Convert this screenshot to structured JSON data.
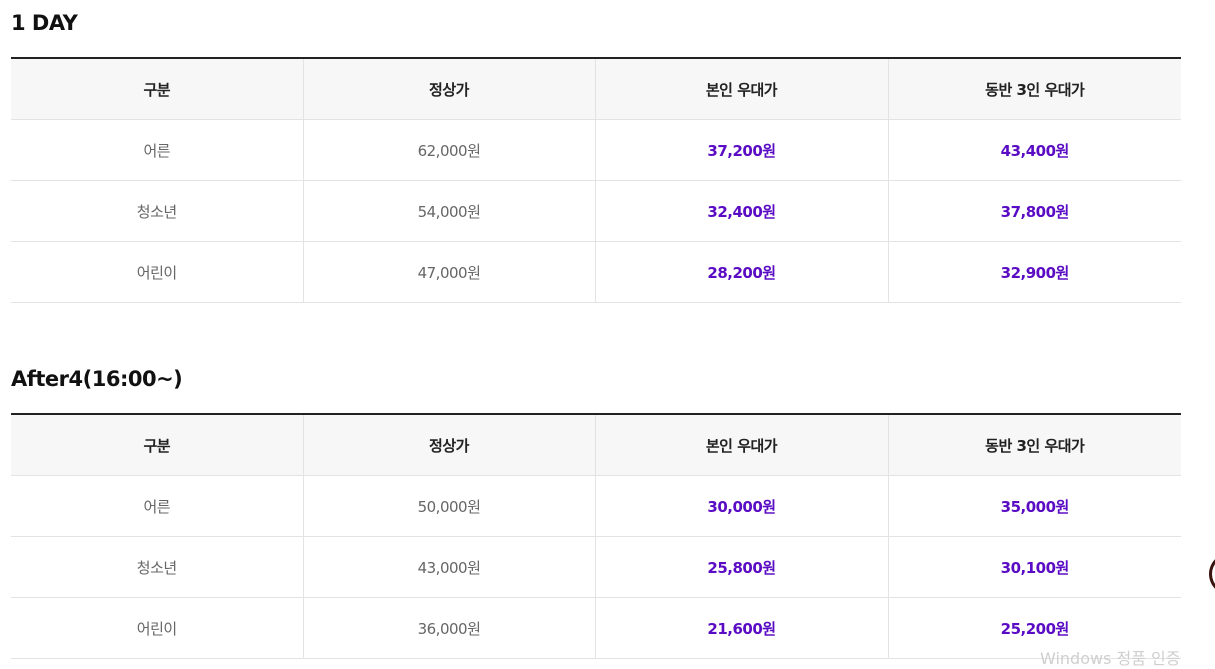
{
  "sections": [
    {
      "title": "1 DAY",
      "headers": [
        "구분",
        "정상가",
        "본인 우대가",
        "동반 3인 우대가"
      ],
      "rows": [
        {
          "category": "어른",
          "regular": "62,000원",
          "self": "37,200원",
          "companion": "43,400원"
        },
        {
          "category": "청소년",
          "regular": "54,000원",
          "self": "32,400원",
          "companion": "37,800원"
        },
        {
          "category": "어린이",
          "regular": "47,000원",
          "self": "28,200원",
          "companion": "32,900원"
        }
      ]
    },
    {
      "title": "After4(16:00~)",
      "headers": [
        "구분",
        "정상가",
        "본인 우대가",
        "동반 3인 우대가"
      ],
      "rows": [
        {
          "category": "어른",
          "regular": "50,000원",
          "self": "30,000원",
          "companion": "35,000원"
        },
        {
          "category": "청소년",
          "regular": "43,000원",
          "self": "25,800원",
          "companion": "30,100원"
        },
        {
          "category": "어린이",
          "regular": "36,000원",
          "self": "21,600원",
          "companion": "25,200원"
        }
      ]
    }
  ],
  "overlay_text": "Windows 정품 인증",
  "colors": {
    "discount": "#5a0cc4",
    "header_bg": "#f7f7f7",
    "border_top": "#222222",
    "row_border": "#e3e3e3"
  }
}
